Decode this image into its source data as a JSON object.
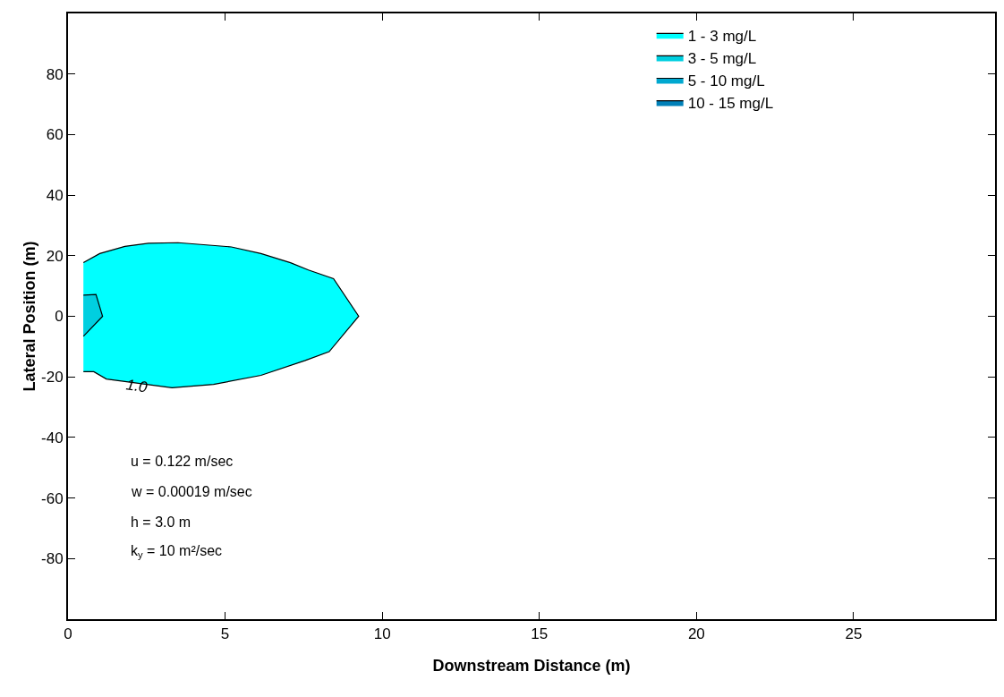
{
  "chart_data": {
    "type": "area",
    "xlabel": "Downstream Distance (m)",
    "ylabel": "Lateral Position (m)",
    "xlim": [
      0,
      29.5
    ],
    "xticks": [
      0,
      5,
      10,
      15,
      20,
      25
    ],
    "ylim": [
      -100,
      100
    ],
    "yticks": [
      -80,
      -60,
      -40,
      -20,
      0,
      20,
      40,
      60,
      80
    ],
    "legend": "top right",
    "series": [
      {
        "name": "1 - 3 mg/L",
        "color": "#00ffff",
        "x": [
          0.49,
          1.01,
          1.81,
          2.56,
          3.5,
          5.2,
          6.14,
          7.08,
          7.65,
          8.45,
          9.25,
          8.31,
          7.55,
          6.14,
          4.63,
          3.31,
          1.22,
          0.82,
          0.49
        ],
        "values": [
          17.7,
          20.7,
          23.1,
          24.1,
          24.3,
          22.9,
          20.7,
          17.7,
          15.3,
          12.4,
          0,
          -11.7,
          -14.6,
          -19.5,
          -22.5,
          -23.6,
          -20.7,
          -18.3,
          -18.3
        ]
      },
      {
        "name": "3 - 5 mg/L",
        "color": "#00cfe0",
        "x": [
          0.49,
          0.89,
          1.1,
          0.49
        ],
        "values": [
          7.0,
          7.2,
          0,
          -6.6
        ]
      },
      {
        "name": "5 - 10 mg/L",
        "color": "#00a8d0"
      },
      {
        "name": "10 - 15 mg/L",
        "color": "#0080b8"
      }
    ],
    "annotations": [
      {
        "text": "1.0",
        "x": 2.2,
        "y": -23
      },
      "u = 0.122 m/sec",
      "w = 0.00019 m/sec",
      "h = 3.0 m",
      "k$_{y}$ = 10 m²/sec"
    ]
  }
}
